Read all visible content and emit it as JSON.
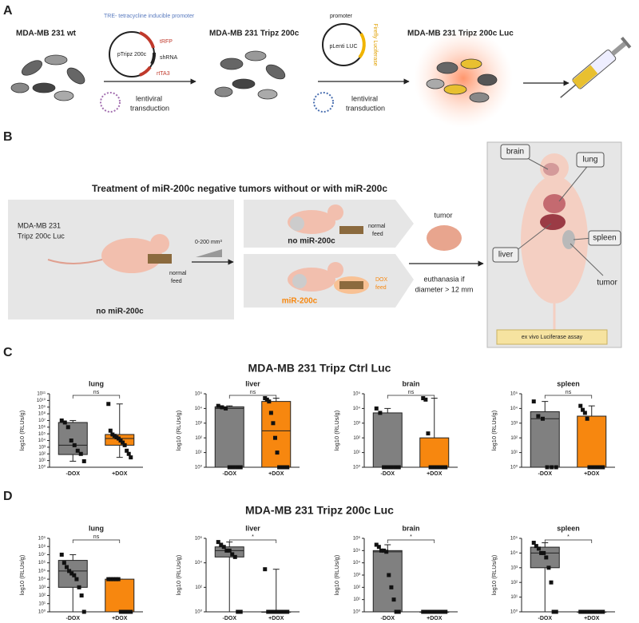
{
  "panel_labels": [
    "A",
    "B",
    "C",
    "D"
  ],
  "panel_a": {
    "cells_wt": "MDA-MB 231 wt",
    "plasmid_1": "pTripz 200c",
    "promoter_1": "TRE- tetracycline inducible promoter",
    "trfp": "tRFP",
    "shrna": "shRNA",
    "rtta3": "rtTA3",
    "transduction_1": [
      "lentiviral",
      "transduction"
    ],
    "cells_tripz": "MDA-MB 231 Tripz 200c",
    "promoter_2": "promoter",
    "plasmid_2": "pLenti LUC",
    "luciferase": "Firefly Luciferase",
    "transduction_2": [
      "lentiviral",
      "transduction"
    ],
    "cells_luc": "MDA-MB 231 Tripz 200c Luc"
  },
  "panel_b": {
    "title": "Treatment of miR-200c negative tumors without or with miR-200c",
    "cells": [
      "MDA-MB 231",
      "Tripz 200c Luc"
    ],
    "start_feed": [
      "normal",
      "feed"
    ],
    "start_group": "no miR-200c",
    "volume": "0-200 mm³",
    "group_1": "no miR-200c",
    "feed_1": [
      "normal",
      "feed"
    ],
    "group_2": "miR-200c",
    "feed_2": [
      "DOX",
      "feed"
    ],
    "tumor": "tumor",
    "euthanasia": [
      "euthanasia if",
      "diameter > 12 mm"
    ],
    "organs": {
      "brain": "brain",
      "lung": "lung",
      "liver": "liver",
      "spleen": "spleen",
      "tumor": "tumor"
    },
    "assay": "ex vivo Luciferase assay"
  },
  "chart_titles": [
    "MDA-MB 231 Tripz Ctrl Luc",
    "MDA-MB 231 Tripz 200c Luc"
  ],
  "chart_data": [
    {
      "type": "box",
      "title": "lung",
      "ylabel": "log10 (RLUs/g)",
      "log_scale": true,
      "categories": [
        "-DOX",
        "+DOX"
      ],
      "ylim": [
        1,
        100000000000
      ],
      "yticks": [
        {
          "value": 1,
          "label": "10⁰"
        },
        {
          "value": 10,
          "label": "10¹"
        },
        {
          "value": 100,
          "label": "10²"
        },
        {
          "value": 1000,
          "label": "10³"
        },
        {
          "value": 10000,
          "label": "10⁴"
        },
        {
          "value": 100000,
          "label": "10⁵"
        },
        {
          "value": 1000000,
          "label": "10⁶"
        },
        {
          "value": 10000000,
          "label": "10⁷"
        },
        {
          "value": 100000000,
          "label": "10⁸"
        },
        {
          "value": 1000000000,
          "label": "10⁹"
        },
        {
          "value": 10000000000,
          "label": "10¹⁰"
        },
        {
          "value": 100000000000,
          "label": "10¹¹"
        }
      ],
      "significance": "ns",
      "boxes": [
        {
          "color": "#808080",
          "min": 8,
          "q1": 80,
          "median": 2000,
          "q3": 5000000,
          "max": 10000000,
          "points": [
            10000000,
            5000000,
            1000000,
            10000,
            2000,
            300,
            100,
            8
          ]
        },
        {
          "color": "#f7870f",
          "min": 30,
          "q1": 2000,
          "median": 20000,
          "q3": 80000,
          "max": 3000000000,
          "points": [
            3000000000,
            300000,
            80000,
            50000,
            30000,
            20000,
            10000,
            5000,
            2000,
            300,
            100,
            30
          ]
        }
      ]
    },
    {
      "type": "box",
      "title": "liver",
      "ylabel": "log10 (RLUs/g)",
      "log_scale": true,
      "categories": [
        "-DOX",
        "+DOX"
      ],
      "ylim": [
        1,
        100000
      ],
      "yticks": [
        {
          "value": 1,
          "label": "10⁰"
        },
        {
          "value": 10,
          "label": "10¹"
        },
        {
          "value": 100,
          "label": "10²"
        },
        {
          "value": 1000,
          "label": "10³"
        },
        {
          "value": 10000,
          "label": "10⁴"
        },
        {
          "value": 100000,
          "label": "10⁵"
        }
      ],
      "significance": "ns",
      "boxes": [
        {
          "color": "#808080",
          "min": 1,
          "q1": 1,
          "median": 10000,
          "q3": 13000,
          "max": 15000,
          "points": [
            15000,
            12000,
            10000,
            1,
            1,
            1,
            1
          ]
        },
        {
          "color": "#f7870f",
          "min": 1,
          "q1": 1,
          "median": 300,
          "q3": 30000,
          "max": 50000,
          "points": [
            50000,
            40000,
            30000,
            5000,
            1000,
            100,
            10,
            1,
            1,
            1,
            1,
            1
          ]
        }
      ]
    },
    {
      "type": "box",
      "title": "brain",
      "ylabel": "log10 (RLUs/g)",
      "log_scale": true,
      "categories": [
        "-DOX",
        "+DOX"
      ],
      "ylim": [
        1,
        100000
      ],
      "yticks": [
        {
          "value": 1,
          "label": "10⁰"
        },
        {
          "value": 10,
          "label": "10¹"
        },
        {
          "value": 100,
          "label": "10²"
        },
        {
          "value": 1000,
          "label": "10³"
        },
        {
          "value": 10000,
          "label": "10⁴"
        },
        {
          "value": 100000,
          "label": "10⁵"
        }
      ],
      "significance": "ns",
      "boxes": [
        {
          "color": "#808080",
          "min": 1,
          "q1": 1,
          "median": 1,
          "q3": 5000,
          "max": 10000,
          "points": [
            10000,
            5000,
            1,
            1,
            1,
            1,
            1
          ]
        },
        {
          "color": "#f7870f",
          "min": 1,
          "q1": 1,
          "median": 1,
          "q3": 100,
          "max": 50000,
          "points": [
            50000,
            40000,
            200,
            1,
            1,
            1,
            1,
            1,
            1,
            1
          ]
        }
      ]
    },
    {
      "type": "box",
      "title": "spleen",
      "ylabel": "log10 (RLUs/g)",
      "log_scale": true,
      "categories": [
        "-DOX",
        "+DOX"
      ],
      "ylim": [
        1,
        100000
      ],
      "yticks": [
        {
          "value": 1,
          "label": "10⁰"
        },
        {
          "value": 10,
          "label": "10¹"
        },
        {
          "value": 100,
          "label": "10²"
        },
        {
          "value": 1000,
          "label": "10³"
        },
        {
          "value": 10000,
          "label": "10⁴"
        },
        {
          "value": 100000,
          "label": "10⁵"
        }
      ],
      "significance": "ns",
      "boxes": [
        {
          "color": "#808080",
          "min": 1,
          "q1": 1,
          "median": 2000,
          "q3": 6000,
          "max": 30000,
          "points": [
            30000,
            3000,
            2000,
            1,
            1,
            1
          ]
        },
        {
          "color": "#f7870f",
          "min": 1,
          "q1": 1,
          "median": 1,
          "q3": 3000,
          "max": 15000,
          "points": [
            15000,
            8000,
            5000,
            2000,
            1,
            1,
            1,
            1,
            1,
            1,
            1
          ]
        }
      ]
    },
    {
      "type": "box",
      "title": "lung",
      "ylabel": "log10 (RLUs/g)",
      "log_scale": true,
      "categories": [
        "-DOX",
        "+DOX"
      ],
      "ylim": [
        1,
        1000000000
      ],
      "yticks": [
        {
          "value": 1,
          "label": "10⁰"
        },
        {
          "value": 10,
          "label": "10¹"
        },
        {
          "value": 100,
          "label": "10²"
        },
        {
          "value": 1000,
          "label": "10³"
        },
        {
          "value": 10000,
          "label": "10⁴"
        },
        {
          "value": 100000,
          "label": "10⁵"
        },
        {
          "value": 1000000,
          "label": "10⁶"
        },
        {
          "value": 10000000,
          "label": "10⁷"
        },
        {
          "value": 100000000,
          "label": "10⁸"
        },
        {
          "value": 1000000000,
          "label": "10⁹"
        }
      ],
      "significance": "ns",
      "boxes": [
        {
          "color": "#808080",
          "min": 1,
          "q1": 1000,
          "median": 100000,
          "q3": 2000000,
          "max": 10000000,
          "points": [
            10000000,
            1000000,
            300000,
            100000,
            50000,
            30000,
            10000,
            1000,
            100,
            1
          ]
        },
        {
          "color": "#f7870f",
          "min": 1,
          "q1": 1,
          "median": 1,
          "q3": 10000,
          "max": 10000,
          "points": [
            10000,
            10000,
            10000,
            10000,
            10000,
            1,
            1,
            1,
            1,
            1
          ]
        }
      ]
    },
    {
      "type": "box",
      "title": "liver",
      "ylabel": "log10 (RLUs/g)",
      "log_scale": true,
      "categories": [
        "-DOX",
        "+DOX"
      ],
      "ylim": [
        1,
        1000000
      ],
      "yticks": [
        {
          "value": 1,
          "label": "10⁰"
        },
        {
          "value": 100,
          "label": "10²"
        },
        {
          "value": 10000,
          "label": "10⁴"
        },
        {
          "value": 1000000,
          "label": "10⁶"
        }
      ],
      "significance": "*",
      "boxes": [
        {
          "color": "#808080",
          "min": 1,
          "q1": 30000,
          "median": 100000,
          "q3": 200000,
          "max": 500000,
          "points": [
            500000,
            300000,
            200000,
            100000,
            100000,
            50000,
            30000,
            1,
            1
          ]
        },
        {
          "color": "#f7870f",
          "min": 1,
          "q1": 1,
          "median": 1,
          "q3": 1,
          "max": 3000,
          "points": [
            3000,
            1,
            1,
            1,
            1,
            1,
            1,
            1
          ]
        }
      ]
    },
    {
      "type": "box",
      "title": "brain",
      "ylabel": "log10 (RLUs/g)",
      "log_scale": true,
      "categories": [
        "-DOX",
        "+DOX"
      ],
      "ylim": [
        1,
        1000000
      ],
      "yticks": [
        {
          "value": 1,
          "label": "10⁰"
        },
        {
          "value": 10,
          "label": "10¹"
        },
        {
          "value": 100,
          "label": "10²"
        },
        {
          "value": 1000,
          "label": "10³"
        },
        {
          "value": 10000,
          "label": "10⁴"
        },
        {
          "value": 100000,
          "label": "10⁵"
        },
        {
          "value": 1000000,
          "label": "10⁶"
        }
      ],
      "significance": "*",
      "boxes": [
        {
          "color": "#808080",
          "min": 1,
          "q1": 1,
          "median": 80000,
          "q3": 100000,
          "max": 300000,
          "points": [
            300000,
            200000,
            100000,
            100000,
            80000,
            1000,
            100,
            10,
            1,
            1
          ]
        },
        {
          "color": "#f7870f",
          "min": 1,
          "q1": 1,
          "median": 1,
          "q3": 1,
          "max": 1,
          "points": [
            1,
            1,
            1,
            1,
            1,
            1,
            1,
            1,
            1,
            1
          ]
        }
      ]
    },
    {
      "type": "box",
      "title": "spleen",
      "ylabel": "log10 (RLUs/g)",
      "log_scale": true,
      "categories": [
        "-DOX",
        "+DOX"
      ],
      "ylim": [
        1,
        100000
      ],
      "yticks": [
        {
          "value": 1,
          "label": "10⁰"
        },
        {
          "value": 10,
          "label": "10¹"
        },
        {
          "value": 100,
          "label": "10²"
        },
        {
          "value": 1000,
          "label": "10³"
        },
        {
          "value": 10000,
          "label": "10⁴"
        },
        {
          "value": 100000,
          "label": "10⁵"
        }
      ],
      "significance": "*",
      "boxes": [
        {
          "color": "#808080",
          "min": 1,
          "q1": 1000,
          "median": 10000,
          "q3": 25000,
          "max": 50000,
          "points": [
            50000,
            30000,
            20000,
            10000,
            10000,
            5000,
            1000,
            100,
            1,
            1
          ]
        },
        {
          "color": "#f7870f",
          "min": 1,
          "q1": 1,
          "median": 1,
          "q3": 1,
          "max": 1,
          "points": [
            1,
            1,
            1,
            1,
            1,
            1,
            1,
            1,
            1,
            1
          ]
        }
      ]
    }
  ]
}
